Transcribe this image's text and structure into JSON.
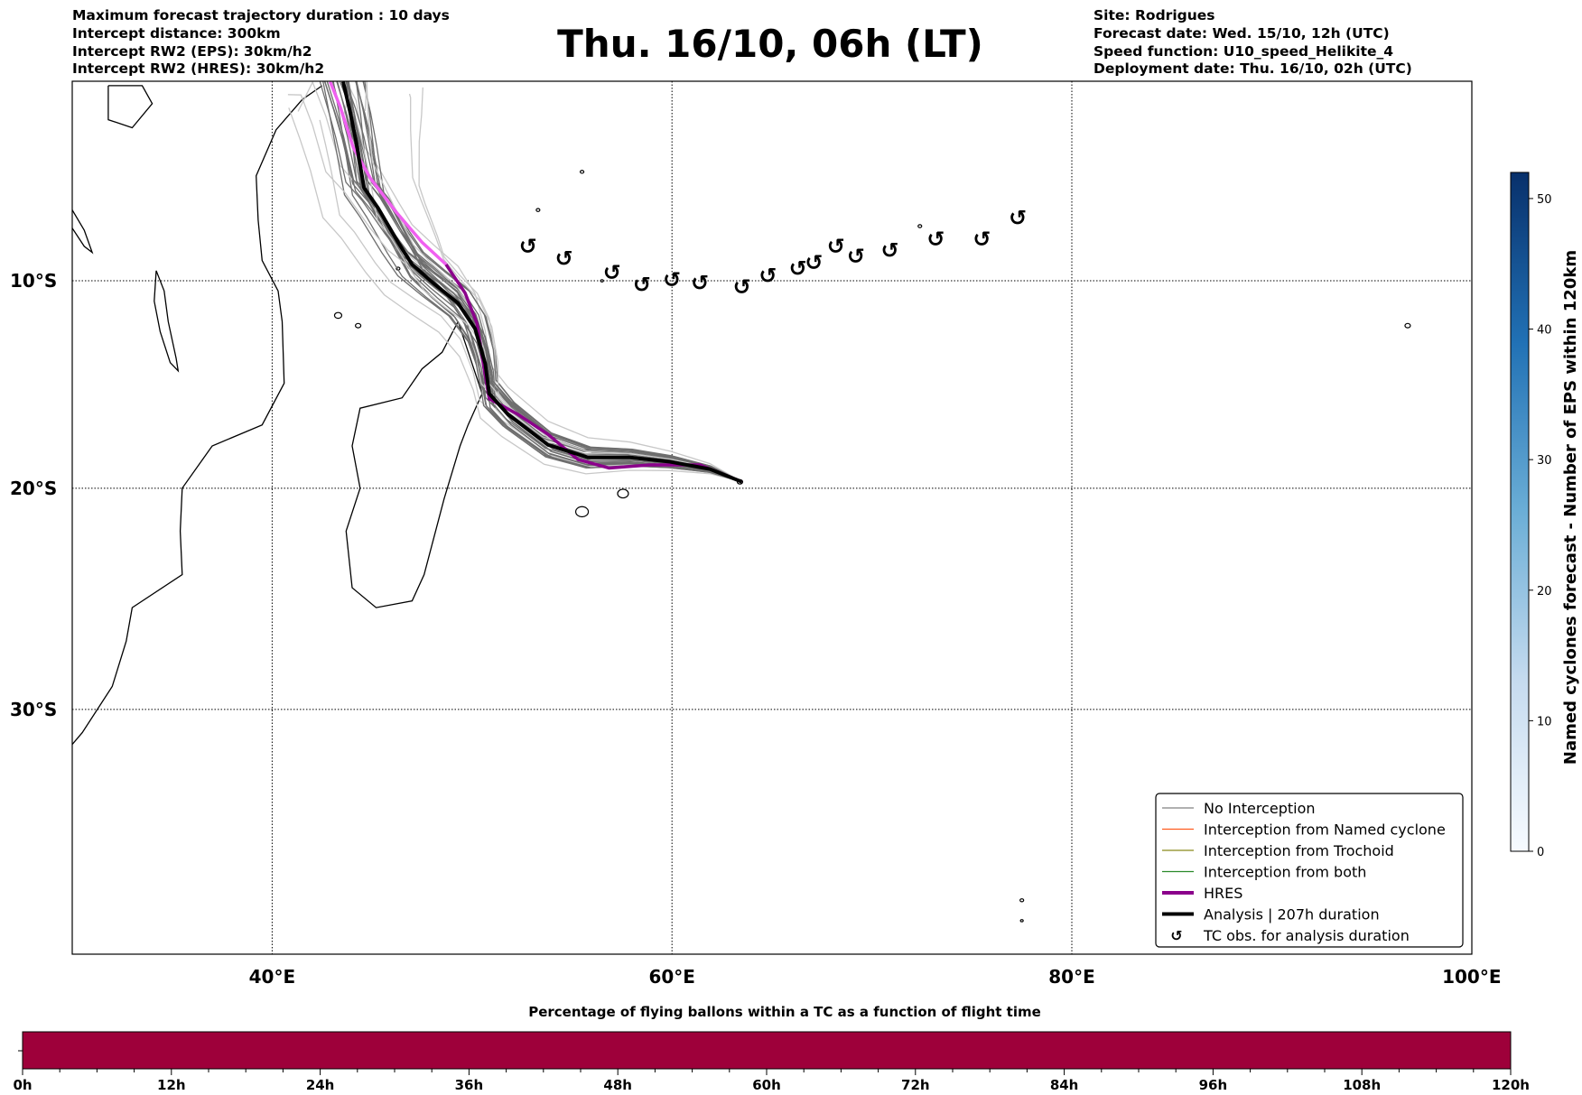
{
  "header": {
    "left_lines": [
      "Maximum forecast trajectory duration : 10 days",
      "Intercept distance: 300km",
      "Intercept RW2 (EPS):  30km/h2",
      "Intercept RW2 (HRES): 30km/h2"
    ],
    "title": "Thu. 16/10, 06h (LT)",
    "right_lines": [
      "Site: Rodrigues",
      "Forecast date: Wed. 15/10, 12h (UTC)",
      "Speed function: U10_speed_Helikite_4",
      "Deployment date: Thu. 16/10, 02h (UTC)"
    ]
  },
  "chart_data": [
    {
      "type": "line",
      "title": "Thu. 16/10, 06h (LT)",
      "xlim": [
        30,
        100
      ],
      "ylim": [
        -40,
        0
      ],
      "x_ticks": [
        {
          "value": 40,
          "label": "40°E"
        },
        {
          "value": 60,
          "label": "60°E"
        },
        {
          "value": 80,
          "label": "80°E"
        },
        {
          "value": 100,
          "label": "100°E"
        }
      ],
      "y_ticks": [
        {
          "value": -10,
          "label": "10°S"
        },
        {
          "value": -20,
          "label": "20°S"
        },
        {
          "value": -30,
          "label": "30°S"
        }
      ],
      "grid": true,
      "legend_position": "bottom-right",
      "legend": [
        {
          "label": "No Interception",
          "color": "#808080",
          "style": "thin"
        },
        {
          "label": "Interception from Named cyclone",
          "color": "#ff5a1f",
          "style": "thin"
        },
        {
          "label": "Interception from Trochoid",
          "color": "#8a8a1a",
          "style": "thin"
        },
        {
          "label": "Interception from both",
          "color": "#2a8a2a",
          "style": "thin"
        },
        {
          "label": "HRES",
          "color": "#8b008b",
          "style": "thick"
        },
        {
          "label": "Analysis | 207h duration",
          "color": "#000000",
          "style": "thick"
        },
        {
          "label": "TC obs. for analysis duration",
          "color": "#000000",
          "style": "marker"
        }
      ],
      "series": [
        {
          "name": "Analysis",
          "color": "#000000",
          "lon": [
            43.55,
            43.9,
            44.2,
            44.6,
            45.3,
            46.3,
            47.0,
            48.1,
            49.3,
            50.15,
            50.66,
            50.86,
            51.8,
            53.8,
            55.8,
            57.9,
            59.9,
            61.9,
            63.5
          ],
          "lat": [
            -0.1,
            -1.6,
            -3.1,
            -5.4,
            -6.4,
            -8.1,
            -9.2,
            -10.15,
            -11.1,
            -12.35,
            -14.05,
            -15.5,
            -16.5,
            -17.95,
            -18.55,
            -18.55,
            -18.75,
            -19.1,
            -19.7
          ]
        },
        {
          "name": "HRES",
          "color": "#8b008b",
          "color_early": "#f060f0",
          "lon": [
            42.9,
            43.4,
            44.06,
            44.9,
            46.2,
            47.5,
            48.7,
            49.65,
            50.25,
            50.56,
            50.86,
            52.3,
            53.8,
            55.3,
            56.85,
            58.9,
            61.4,
            63.5
          ],
          "lat": [
            -0.1,
            -1.35,
            -3.4,
            -4.9,
            -6.6,
            -8.1,
            -9.2,
            -10.6,
            -12.1,
            -14.05,
            -15.75,
            -16.5,
            -17.45,
            -18.65,
            -19.05,
            -18.9,
            -18.9,
            -19.7
          ]
        },
        {
          "name": "TC obs. for analysis duration",
          "type": "scatter",
          "marker": "↺",
          "lon": [
            52.8,
            54.6,
            57.0,
            58.5,
            60.0,
            61.4,
            63.5,
            64.8,
            66.3,
            67.1,
            68.2,
            69.2,
            70.9,
            73.2,
            75.5,
            77.3
          ],
          "lat": [
            -8.3,
            -8.9,
            -9.6,
            -10.2,
            -9.95,
            -10.1,
            -10.3,
            -9.75,
            -9.4,
            -9.1,
            -8.3,
            -8.8,
            -8.5,
            -7.95,
            -7.95,
            -6.9
          ]
        }
      ]
    },
    {
      "type": "heatmap",
      "name": "colorbar-right",
      "label": "Named cyclones forecast - Number of EPS within 120km",
      "range": [
        0,
        52
      ],
      "ticks": [
        "0",
        "10",
        "20",
        "30",
        "40",
        "50"
      ],
      "colormap": [
        "#f7fbff",
        "#c6dbef",
        "#6baed6",
        "#2171b5",
        "#08306b"
      ]
    },
    {
      "type": "bar",
      "name": "colorbar-bottom",
      "title": "Percentage of flying ballons within a TC as a function of flight time",
      "tick_labels": [
        "0h",
        "12h",
        "24h",
        "36h",
        "48h",
        "60h",
        "72h",
        "84h",
        "96h",
        "108h",
        "120h"
      ],
      "range_hours": [
        0,
        120
      ],
      "fill_color": "#9e003a"
    }
  ]
}
